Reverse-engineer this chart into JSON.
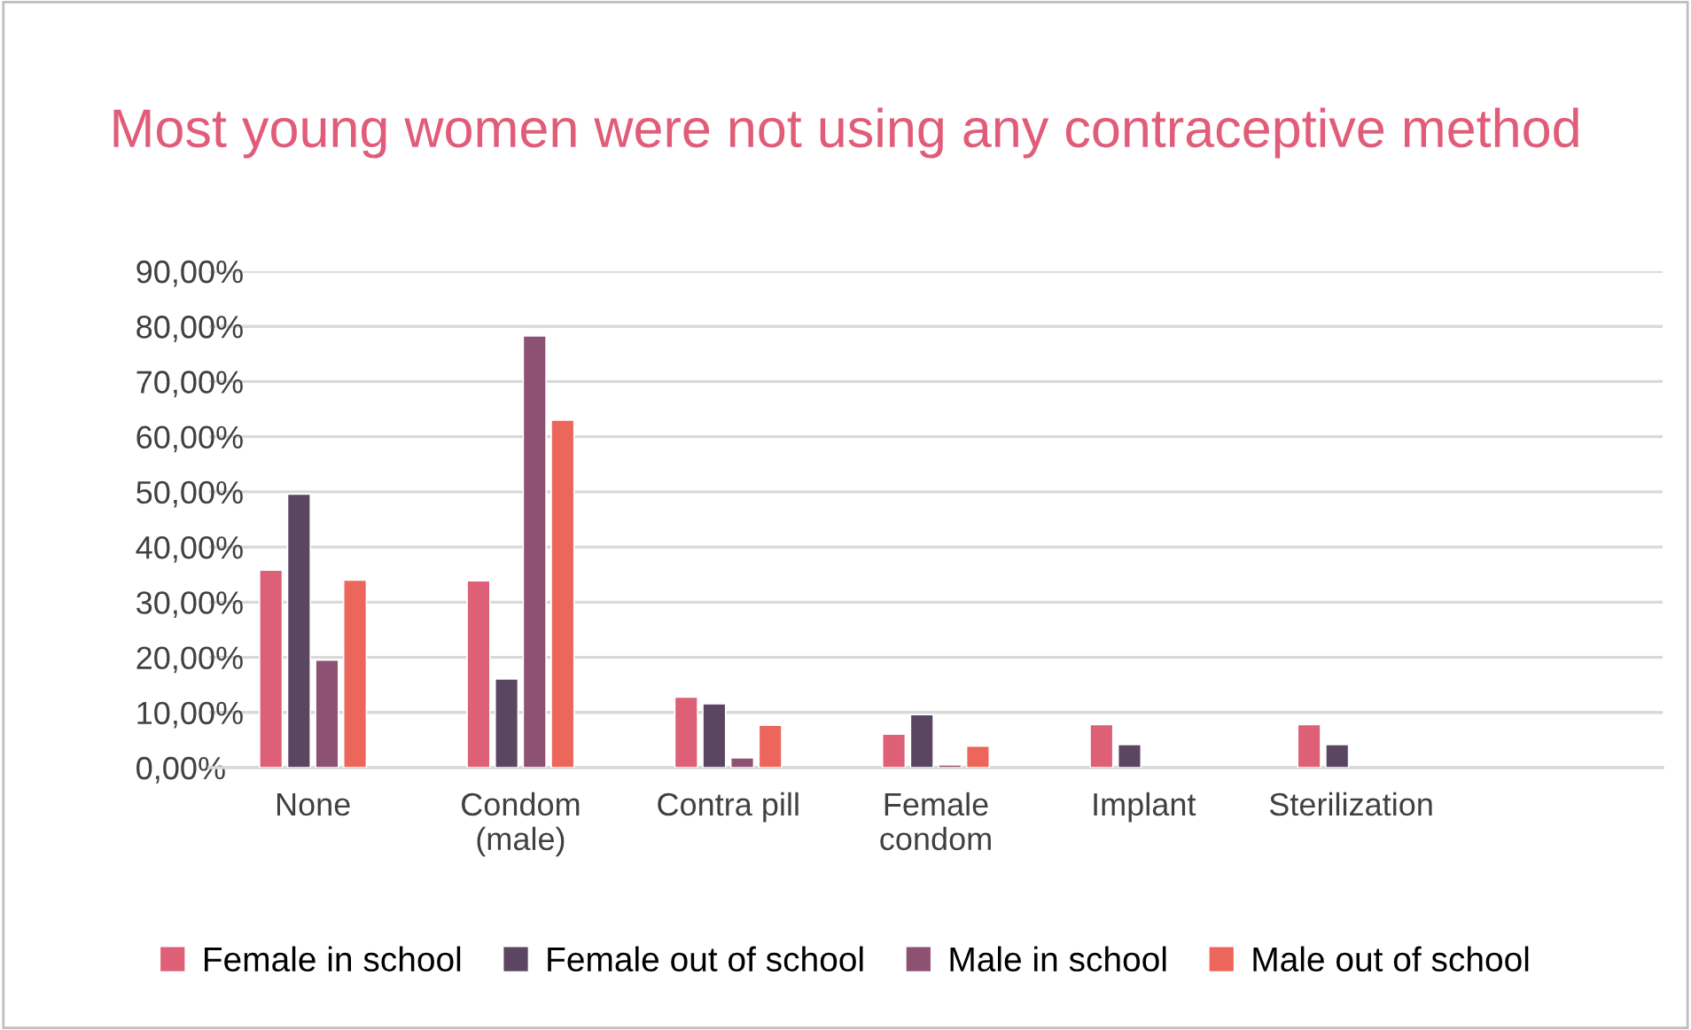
{
  "chart_data": {
    "type": "bar",
    "title": "Most young women were not using any contraceptive method",
    "categories": [
      "None",
      "Condom\n(male)",
      "Contra pill",
      "Female\ncondom",
      "Implant",
      "Sterilization",
      null
    ],
    "series": [
      {
        "name": "Female in school",
        "color": "#dd6076",
        "values": [
          35.8,
          33.9,
          12.8,
          6.1,
          7.8,
          7.8,
          null
        ]
      },
      {
        "name": "Female out of school",
        "color": "#5b4662",
        "values": [
          49.6,
          16.1,
          11.6,
          9.6,
          4.2,
          4.2,
          null
        ]
      },
      {
        "name": "Male in school",
        "color": "#8d5273",
        "values": [
          19.5,
          78.3,
          1.8,
          0.5,
          null,
          null,
          null
        ]
      },
      {
        "name": "Male out of school",
        "color": "#ec665c",
        "values": [
          34.0,
          63.0,
          7.7,
          3.9,
          null,
          null,
          null
        ]
      }
    ],
    "ylim": [
      0,
      90
    ],
    "yticks": [
      {
        "value": 0,
        "label": "0,00%"
      },
      {
        "value": 10,
        "label": "10,00%"
      },
      {
        "value": 20,
        "label": "20,00%"
      },
      {
        "value": 30,
        "label": "30,00%"
      },
      {
        "value": 40,
        "label": "40,00%"
      },
      {
        "value": 50,
        "label": "50,00%"
      },
      {
        "value": 60,
        "label": "60,00%"
      },
      {
        "value": 70,
        "label": "70,00%"
      },
      {
        "value": 80,
        "label": "80,00%"
      },
      {
        "value": 90,
        "label": "90,00%"
      }
    ],
    "grid": "y",
    "legend": "bottom"
  }
}
